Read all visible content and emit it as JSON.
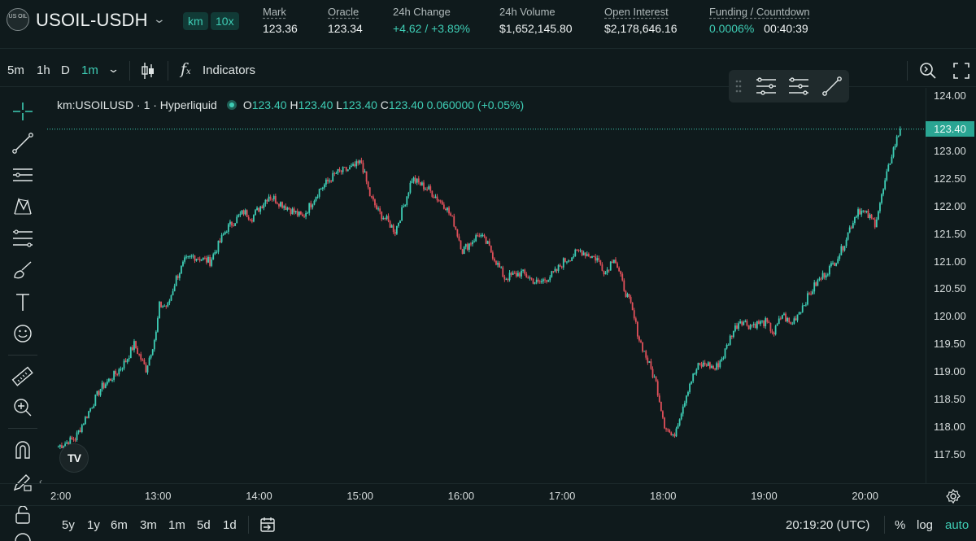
{
  "header": {
    "coin_icon_text": "US OIL",
    "pair": "USOIL-USDH",
    "tags": [
      "km",
      "10x"
    ],
    "stats": [
      {
        "label": "Mark",
        "value": "123.36",
        "underline": true
      },
      {
        "label": "Oracle",
        "value": "123.34",
        "underline": true
      },
      {
        "label": "24h Change",
        "value": "+4.62 / +3.89%",
        "underline": false,
        "green": true
      },
      {
        "label": "24h Volume",
        "value": "$1,652,145.80",
        "underline": false
      },
      {
        "label": "Open Interest",
        "value": "$2,178,646.16",
        "underline": true
      },
      {
        "label": "Funding / Countdown",
        "value": "0.0006%",
        "value2": "00:40:39",
        "underline": true
      }
    ]
  },
  "toolbar": {
    "intervals": [
      "5m",
      "1h",
      "D",
      "1m"
    ],
    "active_interval": "1m",
    "indicators_label": "Indicators"
  },
  "legend": {
    "symbol": "km:USOILUSD · 1 · Hyperliquid",
    "o_label": "O",
    "o": "123.40",
    "h_label": "H",
    "h": "123.40",
    "l_label": "L",
    "l": "123.40",
    "c_label": "C",
    "c": "123.40",
    "change": "0.060000 (+0.05%)"
  },
  "price_axis": {
    "labels": [
      "124.00",
      "123.00",
      "122.50",
      "122.00",
      "121.50",
      "121.00",
      "120.50",
      "120.00",
      "119.50",
      "119.00",
      "118.50",
      "118.00",
      "117.50"
    ],
    "current_price": "123.40"
  },
  "time_axis": {
    "labels": [
      "2:00",
      "13:00",
      "14:00",
      "15:00",
      "16:00",
      "17:00",
      "18:00",
      "19:00",
      "20:00"
    ]
  },
  "bottom_bar": {
    "ranges": [
      "5y",
      "1y",
      "6m",
      "3m",
      "1m",
      "5d",
      "1d"
    ],
    "clock": "20:19:20 (UTC)",
    "percent": "%",
    "log": "log",
    "auto": "auto"
  },
  "colors": {
    "background": "#0f1a1c",
    "up": "#3ecdb5",
    "down": "#e0505a",
    "accent": "#3ecdb5"
  },
  "chart_data": {
    "type": "candlestick",
    "interval": "1m",
    "ylim": [
      117.3,
      124.2
    ],
    "x_range": [
      "12:00",
      "20:20"
    ],
    "close_path": [
      [
        "12:00",
        117.65
      ],
      [
        "12:10",
        117.8
      ],
      [
        "12:15",
        118.1
      ],
      [
        "12:25",
        118.7
      ],
      [
        "12:35",
        119.0
      ],
      [
        "12:40",
        119.2
      ],
      [
        "12:45",
        119.5
      ],
      [
        "12:52",
        119.05
      ],
      [
        "12:58",
        119.7
      ],
      [
        "13:00",
        120.2
      ],
      [
        "13:05",
        120.2
      ],
      [
        "13:10",
        120.7
      ],
      [
        "13:15",
        121.0
      ],
      [
        "13:20",
        121.1
      ],
      [
        "13:30",
        121.0
      ],
      [
        "13:40",
        121.6
      ],
      [
        "13:50",
        121.9
      ],
      [
        "13:55",
        121.8
      ],
      [
        "14:05",
        122.2
      ],
      [
        "14:15",
        122.0
      ],
      [
        "14:25",
        121.8
      ],
      [
        "14:35",
        122.3
      ],
      [
        "14:45",
        122.6
      ],
      [
        "14:55",
        122.7
      ],
      [
        "15:00",
        122.8
      ],
      [
        "15:05",
        122.2
      ],
      [
        "15:10",
        121.9
      ],
      [
        "15:15",
        121.75
      ],
      [
        "15:20",
        121.55
      ],
      [
        "15:25",
        122.0
      ],
      [
        "15:30",
        122.5
      ],
      [
        "15:40",
        122.3
      ],
      [
        "15:50",
        122.0
      ],
      [
        "15:55",
        121.7
      ],
      [
        "16:00",
        121.2
      ],
      [
        "16:10",
        121.5
      ],
      [
        "16:15",
        121.3
      ],
      [
        "16:25",
        120.7
      ],
      [
        "16:35",
        120.8
      ],
      [
        "16:45",
        120.6
      ],
      [
        "16:55",
        120.8
      ],
      [
        "17:00",
        121.0
      ],
      [
        "17:10",
        121.2
      ],
      [
        "17:20",
        121.05
      ],
      [
        "17:25",
        120.8
      ],
      [
        "17:30",
        121.1
      ],
      [
        "17:35",
        120.6
      ],
      [
        "17:40",
        120.2
      ],
      [
        "17:45",
        119.6
      ],
      [
        "17:50",
        119.2
      ],
      [
        "17:55",
        118.8
      ],
      [
        "18:00",
        118.05
      ],
      [
        "18:05",
        117.8
      ],
      [
        "18:10",
        118.3
      ],
      [
        "18:15",
        118.8
      ],
      [
        "18:20",
        119.1
      ],
      [
        "18:25",
        119.15
      ],
      [
        "18:30",
        119.05
      ],
      [
        "18:35",
        119.3
      ],
      [
        "18:40",
        119.7
      ],
      [
        "18:45",
        119.95
      ],
      [
        "18:50",
        119.85
      ],
      [
        "19:00",
        119.9
      ],
      [
        "19:05",
        119.7
      ],
      [
        "19:10",
        120.05
      ],
      [
        "19:15",
        119.85
      ],
      [
        "19:20",
        120.1
      ],
      [
        "19:30",
        120.6
      ],
      [
        "19:40",
        120.95
      ],
      [
        "19:45",
        121.2
      ],
      [
        "19:50",
        121.6
      ],
      [
        "19:55",
        121.95
      ],
      [
        "20:00",
        121.85
      ],
      [
        "20:05",
        121.7
      ],
      [
        "20:10",
        122.3
      ],
      [
        "20:15",
        122.95
      ],
      [
        "20:20",
        123.4
      ]
    ]
  }
}
